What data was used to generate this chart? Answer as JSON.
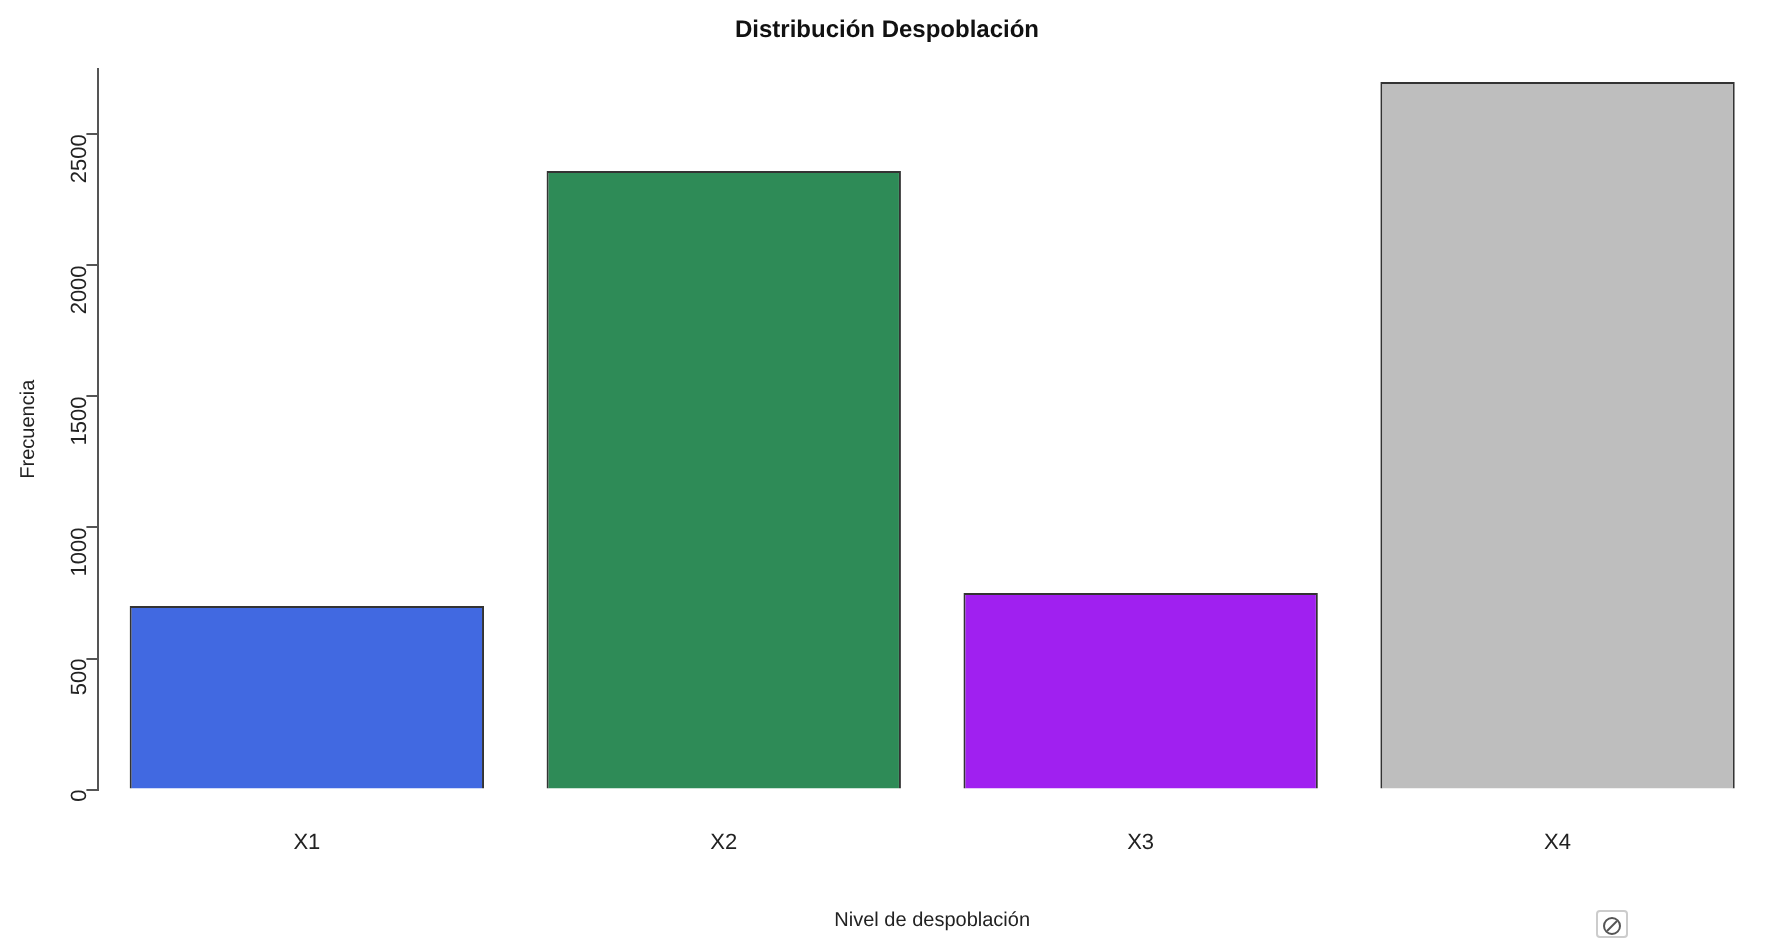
{
  "chart_data": {
    "type": "bar",
    "title": "Distribución Despoblación",
    "xlabel": "Nivel de despoblación",
    "ylabel": "Frecuencia",
    "categories": [
      "X1",
      "X2",
      "X3",
      "X4"
    ],
    "values": [
      700,
      2360,
      750,
      2700
    ],
    "colors": [
      "#4169e1",
      "#2e8b57",
      "#a020f0",
      "#bebebe"
    ],
    "ylim": [
      0,
      2750
    ],
    "yticks": [
      0,
      500,
      1000,
      1500,
      2000,
      2500
    ],
    "grid": false,
    "legend": false
  }
}
